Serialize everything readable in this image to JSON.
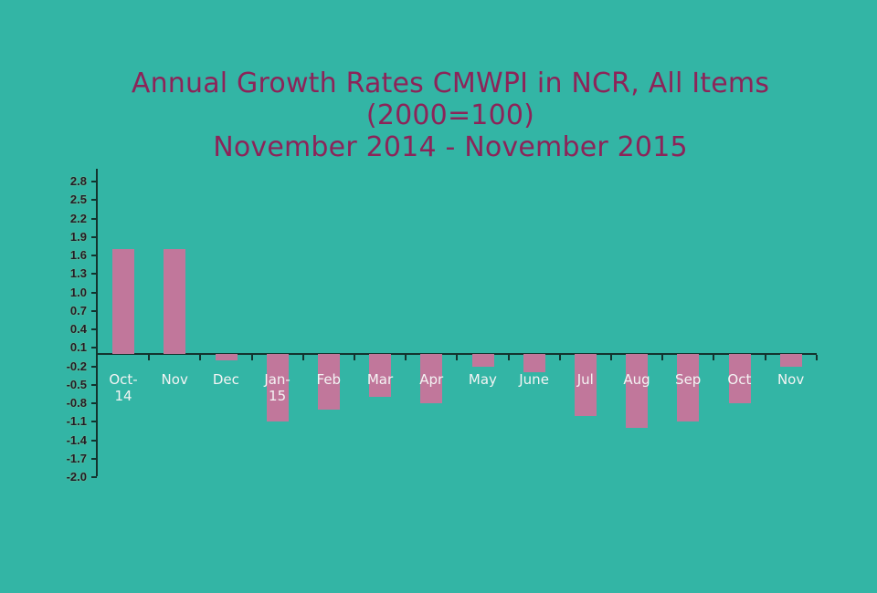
{
  "title": {
    "line1": "Annual Growth Rates CMWPI in NCR, All Items",
    "line2": "(2000=100)",
    "line3": "November 2014 - November 2015"
  },
  "colors": {
    "background": "#33b5a5",
    "title": "#8c2459",
    "bar": "#c1779b",
    "axis": "#13332e",
    "category_label": "#f4f4f4"
  },
  "chart_data": {
    "type": "bar",
    "title": "Annual Growth Rates CMWPI in NCR, All Items (2000=100) November 2014 - November 2015",
    "xlabel": "",
    "ylabel": "",
    "categories": [
      "Oct-14",
      "Nov",
      "Dec",
      "Jan-15",
      "Feb",
      "Mar",
      "Apr",
      "May",
      "June",
      "Jul",
      "Aug",
      "Sep",
      "Oct",
      "Nov"
    ],
    "values": [
      1.7,
      1.7,
      -0.1,
      -1.1,
      -0.9,
      -0.7,
      -0.8,
      -0.2,
      -0.3,
      -1.0,
      -1.2,
      -1.1,
      -0.8,
      -0.2
    ],
    "yticks": [
      "2.8",
      "2.5",
      "2.2",
      "1.9",
      "1.6",
      "1.3",
      "1.0",
      "0.7",
      "0.4",
      "0.1",
      "-0.2",
      "-0.5",
      "-0.8",
      "-1.1",
      "-1.4",
      "-1.7",
      "-2.0"
    ],
    "ylim": [
      -2.0,
      2.8
    ],
    "grid": false,
    "legend": null
  }
}
